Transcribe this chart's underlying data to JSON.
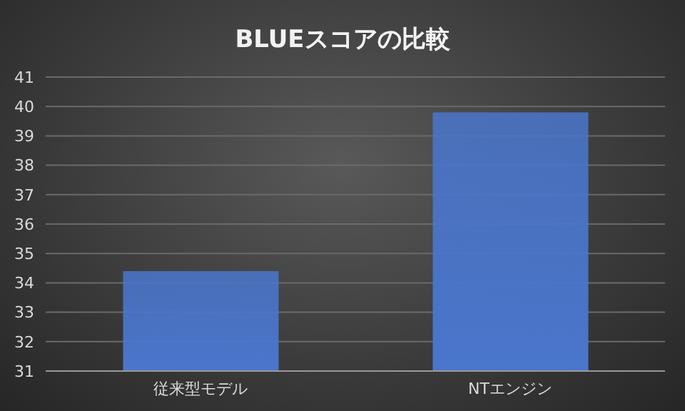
{
  "chart_data": {
    "type": "bar",
    "title": "BLUEスコアの比較",
    "categories": [
      "従来型モデル",
      "NTエンジン"
    ],
    "values": [
      34.4,
      39.8
    ],
    "color": "#4a76cc",
    "ylim": [
      31,
      41
    ],
    "yticks": [
      31,
      32,
      33,
      34,
      35,
      36,
      37,
      38,
      39,
      40,
      41
    ],
    "grid": "y"
  }
}
